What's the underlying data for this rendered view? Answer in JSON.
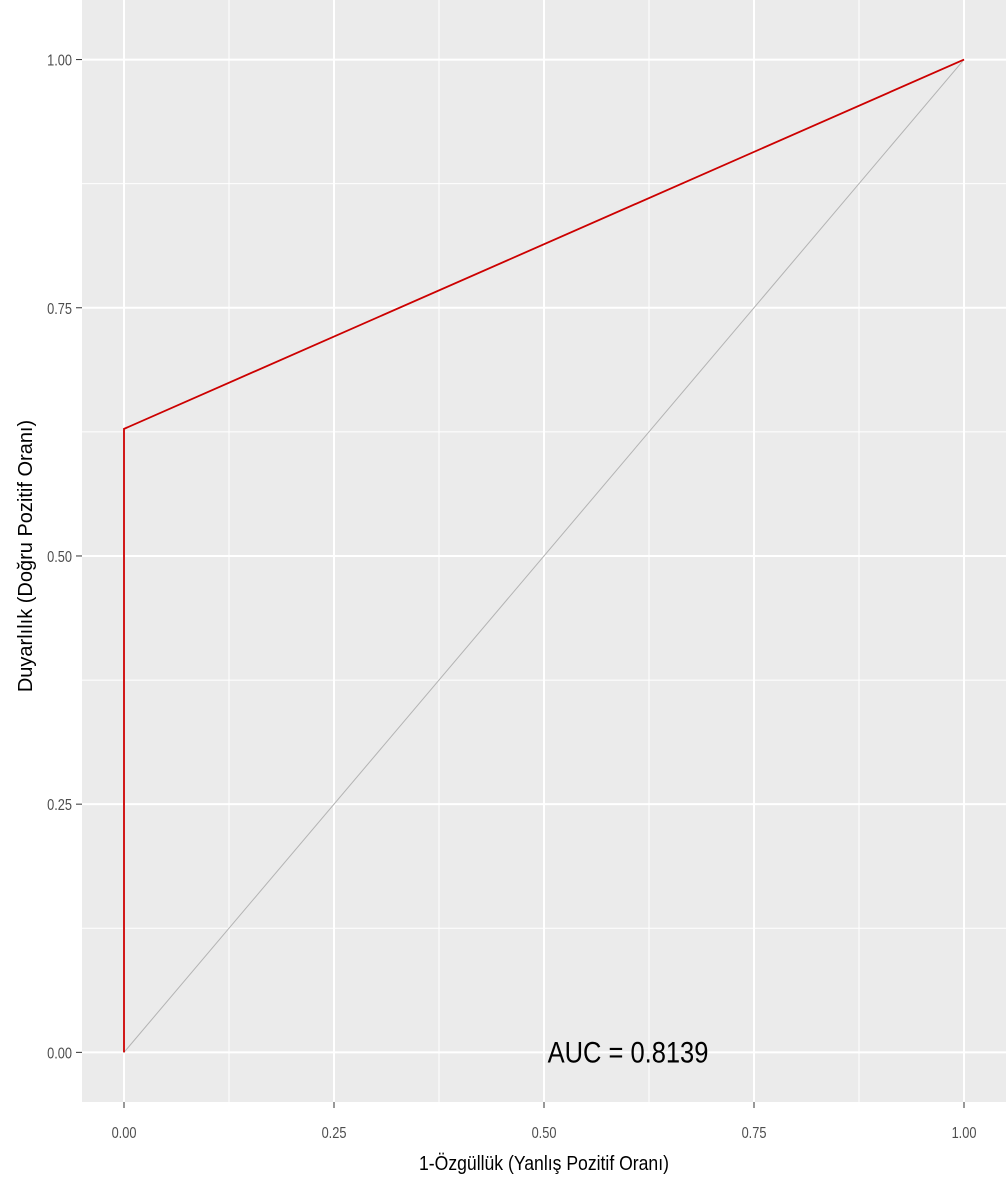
{
  "chart_data": {
    "type": "line",
    "xlabel": "1-Özgüllük (Yanlış Pozitif Oranı)",
    "ylabel": "Duyarlılık (Doğru Pozitif Oranı)",
    "xlim": [
      -0.05,
      1.05
    ],
    "ylim": [
      -0.05,
      1.06
    ],
    "x_ticks": [
      "0.00",
      "0.25",
      "0.50",
      "0.75",
      "1.00"
    ],
    "y_ticks": [
      "0.00",
      "0.25",
      "0.50",
      "0.75",
      "1.00"
    ],
    "grid": true,
    "background": "#ebebeb",
    "series": [
      {
        "color": "#cc0000",
        "x": [
          0,
          0,
          1
        ],
        "y": [
          0,
          0.628,
          1
        ]
      },
      {
        "color": "#b3b3b3",
        "x": [
          0,
          1
        ],
        "y": [
          0,
          1
        ]
      }
    ],
    "annotation": {
      "text": "AUC = 0.8139",
      "x": 0.6,
      "y": 0.0
    }
  }
}
